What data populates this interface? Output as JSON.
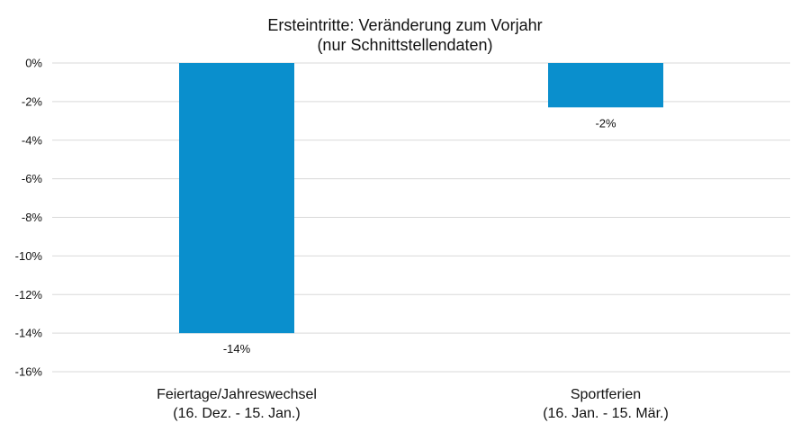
{
  "chart_data": {
    "type": "bar",
    "title": [
      "Ersteintritte: Veränderung zum Vorjahr",
      "(nur Schnittstellendaten)"
    ],
    "categories": [
      [
        "Feiertage/Jahreswechsel",
        "(16. Dez. - 15. Jan.)"
      ],
      [
        "Sportferien",
        "(16. Jan. - 15. Mär.)"
      ]
    ],
    "values": [
      -14,
      -2.3
    ],
    "data_labels": [
      "-14%",
      "-2%"
    ],
    "ylim": [
      -16,
      0
    ],
    "yticks": [
      0,
      -2,
      -4,
      -6,
      -8,
      -10,
      -12,
      -14,
      -16
    ],
    "ytick_labels": [
      "0%",
      "-2%",
      "-4%",
      "-6%",
      "-8%",
      "-10%",
      "-12%",
      "-14%",
      "-16%"
    ],
    "xlabel": "",
    "ylabel": "",
    "grid": true,
    "bar_color": "#0a8fcd",
    "grid_color": "#d9d9d9"
  }
}
